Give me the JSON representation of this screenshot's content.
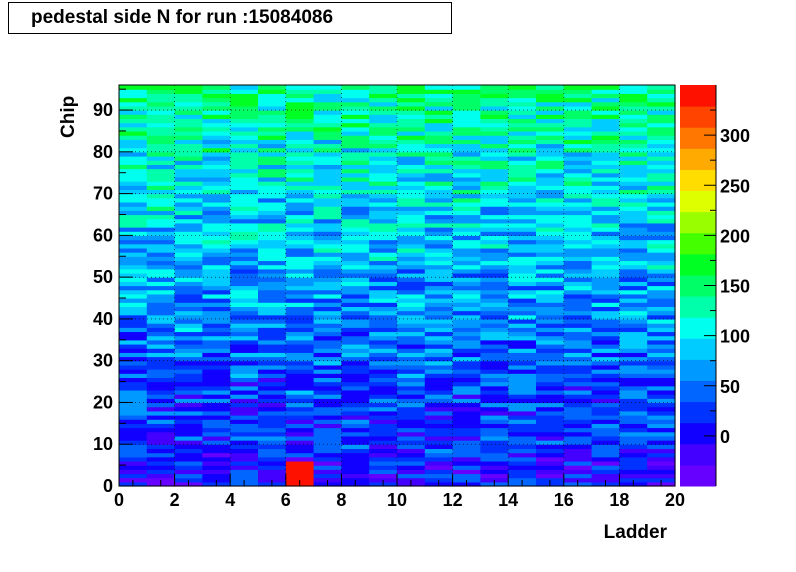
{
  "title": "pedestal side N for run :15084086",
  "chart_data": {
    "type": "heatmap",
    "title": "pedestal side N for run :15084086",
    "xlabel": "Ladder",
    "ylabel": "Chip",
    "xlim": [
      0,
      20
    ],
    "ylim": [
      0,
      96
    ],
    "x_ticks": [
      "0",
      "2",
      "4",
      "6",
      "8",
      "10",
      "12",
      "14",
      "16",
      "18",
      "20"
    ],
    "y_ticks": [
      "0",
      "10",
      "20",
      "30",
      "40",
      "50",
      "60",
      "70",
      "80",
      "90"
    ],
    "z_range": [
      -50,
      350
    ],
    "z_ticks": [
      "0",
      "50",
      "100",
      "150",
      "200",
      "250",
      "300"
    ],
    "grid": true,
    "n_ladders": 20,
    "n_chips": 96,
    "trend": "pedestal rises with chip number: ~0-40 for chips 0-30, ~60-100 for chips 30-70, ~120-150 for chips 70-96; hot cells at ladder 7 chips 0-5 (~340)",
    "hot_cells": [
      {
        "ladder": 7,
        "chip_from": 0,
        "chip_to": 5,
        "value": 340
      }
    ],
    "palette": [
      "#6600ff",
      "#4400ff",
      "#1100ff",
      "#0033ff",
      "#0066ff",
      "#0099ff",
      "#00ccff",
      "#00ffee",
      "#00ffaa",
      "#00ff66",
      "#00ff22",
      "#44ff00",
      "#99ff00",
      "#ddff00",
      "#ffdd00",
      "#ffaa00",
      "#ff7700",
      "#ff4400",
      "#ff1100"
    ]
  }
}
